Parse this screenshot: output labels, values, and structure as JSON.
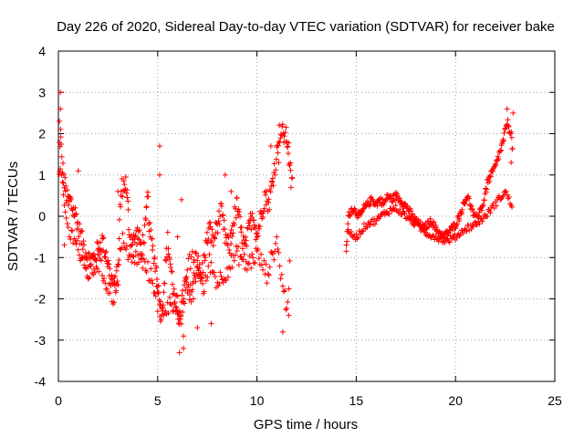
{
  "chart_data": {
    "type": "scatter",
    "title": "Day 226 of 2020, Sidereal Day-to-day VTEC variation (SDTVAR) for receiver bake",
    "xlabel": "GPS time / hours",
    "ylabel": "SDTVAR / TECUs",
    "xlim": [
      0,
      25
    ],
    "ylim": [
      -4,
      4
    ],
    "xticks": [
      0,
      5,
      10,
      15,
      20,
      25
    ],
    "yticks": [
      -4,
      -3,
      -2,
      -1,
      0,
      1,
      2,
      3,
      4
    ],
    "grid": true,
    "marker": "+",
    "series": [
      {
        "name": "SDTVAR",
        "color": "#ff0000",
        "trace": [
          [
            0.0,
            0.2
          ],
          [
            0.05,
            1.7
          ],
          [
            0.1,
            2.0
          ],
          [
            0.15,
            1.6
          ],
          [
            0.2,
            1.2
          ],
          [
            0.3,
            0.8
          ],
          [
            0.4,
            0.5
          ],
          [
            0.5,
            0.3
          ],
          [
            0.6,
            0.4
          ],
          [
            0.7,
            0.2
          ],
          [
            0.8,
            0.1
          ],
          [
            0.9,
            0.0
          ],
          [
            1.0,
            -0.3
          ],
          [
            1.2,
            -0.6
          ],
          [
            1.4,
            -0.9
          ],
          [
            1.6,
            -1.1
          ],
          [
            1.8,
            -1.0
          ],
          [
            2.0,
            -0.8
          ],
          [
            2.2,
            -0.6
          ],
          [
            2.4,
            -0.9
          ],
          [
            2.6,
            -1.4
          ],
          [
            2.8,
            -1.7
          ],
          [
            3.0,
            -1.5
          ],
          [
            3.1,
            0.2
          ],
          [
            3.2,
            0.7
          ],
          [
            3.4,
            0.8
          ],
          [
            3.5,
            0.2
          ],
          [
            3.6,
            -0.5
          ],
          [
            3.8,
            -0.6
          ],
          [
            4.0,
            -0.4
          ],
          [
            4.2,
            -0.8
          ],
          [
            4.4,
            -0.2
          ],
          [
            4.5,
            0.5
          ],
          [
            4.6,
            -0.4
          ],
          [
            4.8,
            -0.9
          ],
          [
            5.0,
            -1.5
          ],
          [
            5.1,
            -2.2
          ],
          [
            5.2,
            -2.4
          ],
          [
            5.5,
            -0.6
          ],
          [
            5.8,
            -1.8
          ],
          [
            6.0,
            -2.6
          ],
          [
            6.2,
            -2.2
          ],
          [
            6.4,
            -1.6
          ],
          [
            6.6,
            -2.0
          ],
          [
            6.8,
            -1.6
          ],
          [
            7.0,
            -1.2
          ],
          [
            7.2,
            -1.5
          ],
          [
            7.4,
            -0.8
          ],
          [
            7.6,
            -0.3
          ],
          [
            7.8,
            -0.6
          ],
          [
            8.0,
            -0.2
          ],
          [
            8.2,
            0.1
          ],
          [
            8.4,
            -0.5
          ],
          [
            8.6,
            -0.8
          ],
          [
            8.8,
            -0.2
          ],
          [
            9.0,
            0.3
          ],
          [
            9.2,
            -0.4
          ],
          [
            9.4,
            -0.8
          ],
          [
            9.6,
            -0.3
          ],
          [
            9.8,
            0.1
          ],
          [
            10.0,
            -0.5
          ],
          [
            10.2,
            0.0
          ],
          [
            10.4,
            0.5
          ],
          [
            10.6,
            0.3
          ],
          [
            10.8,
            0.9
          ],
          [
            11.0,
            1.5
          ],
          [
            11.1,
            2.0
          ],
          [
            11.3,
            2.0
          ],
          [
            11.5,
            1.9
          ],
          [
            11.6,
            1.6
          ],
          [
            11.7,
            0.9
          ],
          [
            11.8,
            0.7
          ],
          [
            14.5,
            -0.8
          ],
          [
            14.6,
            0.0
          ],
          [
            14.8,
            0.2
          ],
          [
            15.0,
            0.1
          ],
          [
            15.2,
            0.0
          ],
          [
            15.4,
            0.2
          ],
          [
            15.6,
            0.3
          ],
          [
            15.8,
            0.4
          ],
          [
            16.0,
            0.3
          ],
          [
            16.2,
            0.4
          ],
          [
            16.4,
            0.3
          ],
          [
            16.6,
            0.5
          ],
          [
            16.8,
            0.4
          ],
          [
            17.0,
            0.5
          ],
          [
            17.2,
            0.4
          ],
          [
            17.4,
            0.3
          ],
          [
            17.6,
            0.2
          ],
          [
            17.8,
            0.0
          ],
          [
            18.0,
            -0.1
          ],
          [
            18.2,
            -0.2
          ],
          [
            18.4,
            -0.3
          ],
          [
            18.6,
            -0.2
          ],
          [
            18.8,
            -0.1
          ],
          [
            19.0,
            -0.3
          ],
          [
            19.2,
            -0.4
          ],
          [
            19.4,
            -0.5
          ],
          [
            19.6,
            -0.4
          ],
          [
            19.8,
            -0.3
          ],
          [
            20.0,
            -0.2
          ],
          [
            20.2,
            0.0
          ],
          [
            20.4,
            0.3
          ],
          [
            20.6,
            0.5
          ],
          [
            20.8,
            0.2
          ],
          [
            21.0,
            -0.1
          ],
          [
            21.2,
            0.1
          ],
          [
            21.4,
            0.3
          ],
          [
            21.6,
            0.8
          ],
          [
            21.8,
            1.0
          ],
          [
            22.0,
            1.2
          ],
          [
            22.2,
            1.5
          ],
          [
            22.4,
            1.8
          ],
          [
            22.6,
            2.3
          ],
          [
            22.8,
            2.0
          ],
          [
            22.9,
            1.4
          ]
        ],
        "trace_secondary": [
          [
            0.0,
            0.9
          ],
          [
            0.1,
            1.1
          ],
          [
            0.2,
            0.6
          ],
          [
            0.4,
            -0.1
          ],
          [
            0.6,
            -0.5
          ],
          [
            0.8,
            -0.4
          ],
          [
            1.0,
            -0.8
          ],
          [
            1.3,
            -1.3
          ],
          [
            1.6,
            -1.4
          ],
          [
            2.0,
            -1.1
          ],
          [
            2.4,
            -1.6
          ],
          [
            2.8,
            -2.0
          ],
          [
            3.0,
            -1.2
          ],
          [
            3.3,
            -0.5
          ],
          [
            3.6,
            -1.1
          ],
          [
            4.0,
            -1.0
          ],
          [
            4.5,
            -1.3
          ],
          [
            5.0,
            -1.9
          ],
          [
            5.2,
            -2.3
          ],
          [
            6.0,
            -2.0
          ],
          [
            6.2,
            -2.8
          ],
          [
            6.5,
            -1.2
          ],
          [
            7.0,
            -0.9
          ],
          [
            7.3,
            -1.9
          ],
          [
            7.6,
            -1.1
          ],
          [
            8.0,
            -1.6
          ],
          [
            8.5,
            -1.3
          ],
          [
            9.0,
            -0.9
          ],
          [
            9.5,
            -1.2
          ],
          [
            10.0,
            -0.9
          ],
          [
            10.5,
            -1.4
          ],
          [
            11.0,
            -0.6
          ],
          [
            11.3,
            -1.7
          ],
          [
            11.5,
            -2.2
          ],
          [
            11.7,
            -1.0
          ],
          [
            14.6,
            -0.4
          ],
          [
            15.0,
            -0.5
          ],
          [
            15.5,
            -0.2
          ],
          [
            16.0,
            -0.1
          ],
          [
            16.5,
            0.1
          ],
          [
            17.0,
            0.2
          ],
          [
            17.5,
            0.0
          ],
          [
            18.0,
            -0.2
          ],
          [
            18.5,
            -0.4
          ],
          [
            19.0,
            -0.5
          ],
          [
            19.5,
            -0.6
          ],
          [
            20.0,
            -0.5
          ],
          [
            20.5,
            -0.3
          ],
          [
            21.0,
            -0.2
          ],
          [
            21.5,
            0.0
          ],
          [
            22.0,
            0.3
          ],
          [
            22.5,
            0.6
          ],
          [
            22.9,
            0.2
          ]
        ],
        "isolated_points": [
          [
            0.1,
            3.0
          ],
          [
            0.1,
            2.6
          ],
          [
            0.05,
            2.3
          ],
          [
            5.1,
            1.7
          ],
          [
            5.1,
            1.0
          ],
          [
            5.0,
            -2.3
          ],
          [
            6.1,
            -3.3
          ],
          [
            6.3,
            -3.2
          ],
          [
            6.3,
            -2.9
          ],
          [
            6.2,
            0.4
          ],
          [
            6.0,
            -0.5
          ],
          [
            7.0,
            -2.7
          ],
          [
            7.7,
            -2.6
          ],
          [
            6.8,
            -2.0
          ],
          [
            8.4,
            1.0
          ],
          [
            8.7,
            0.6
          ],
          [
            11.3,
            -2.8
          ],
          [
            11.6,
            -2.4
          ],
          [
            10.7,
            1.7
          ],
          [
            11.1,
            1.3
          ],
          [
            0.3,
            -0.7
          ],
          [
            1.0,
            1.1
          ],
          [
            1.5,
            -1.5
          ],
          [
            3.0,
            0.6
          ],
          [
            14.5,
            -0.7
          ],
          [
            22.6,
            2.6
          ],
          [
            22.9,
            2.5
          ],
          [
            22.8,
            1.3
          ]
        ]
      }
    ]
  }
}
